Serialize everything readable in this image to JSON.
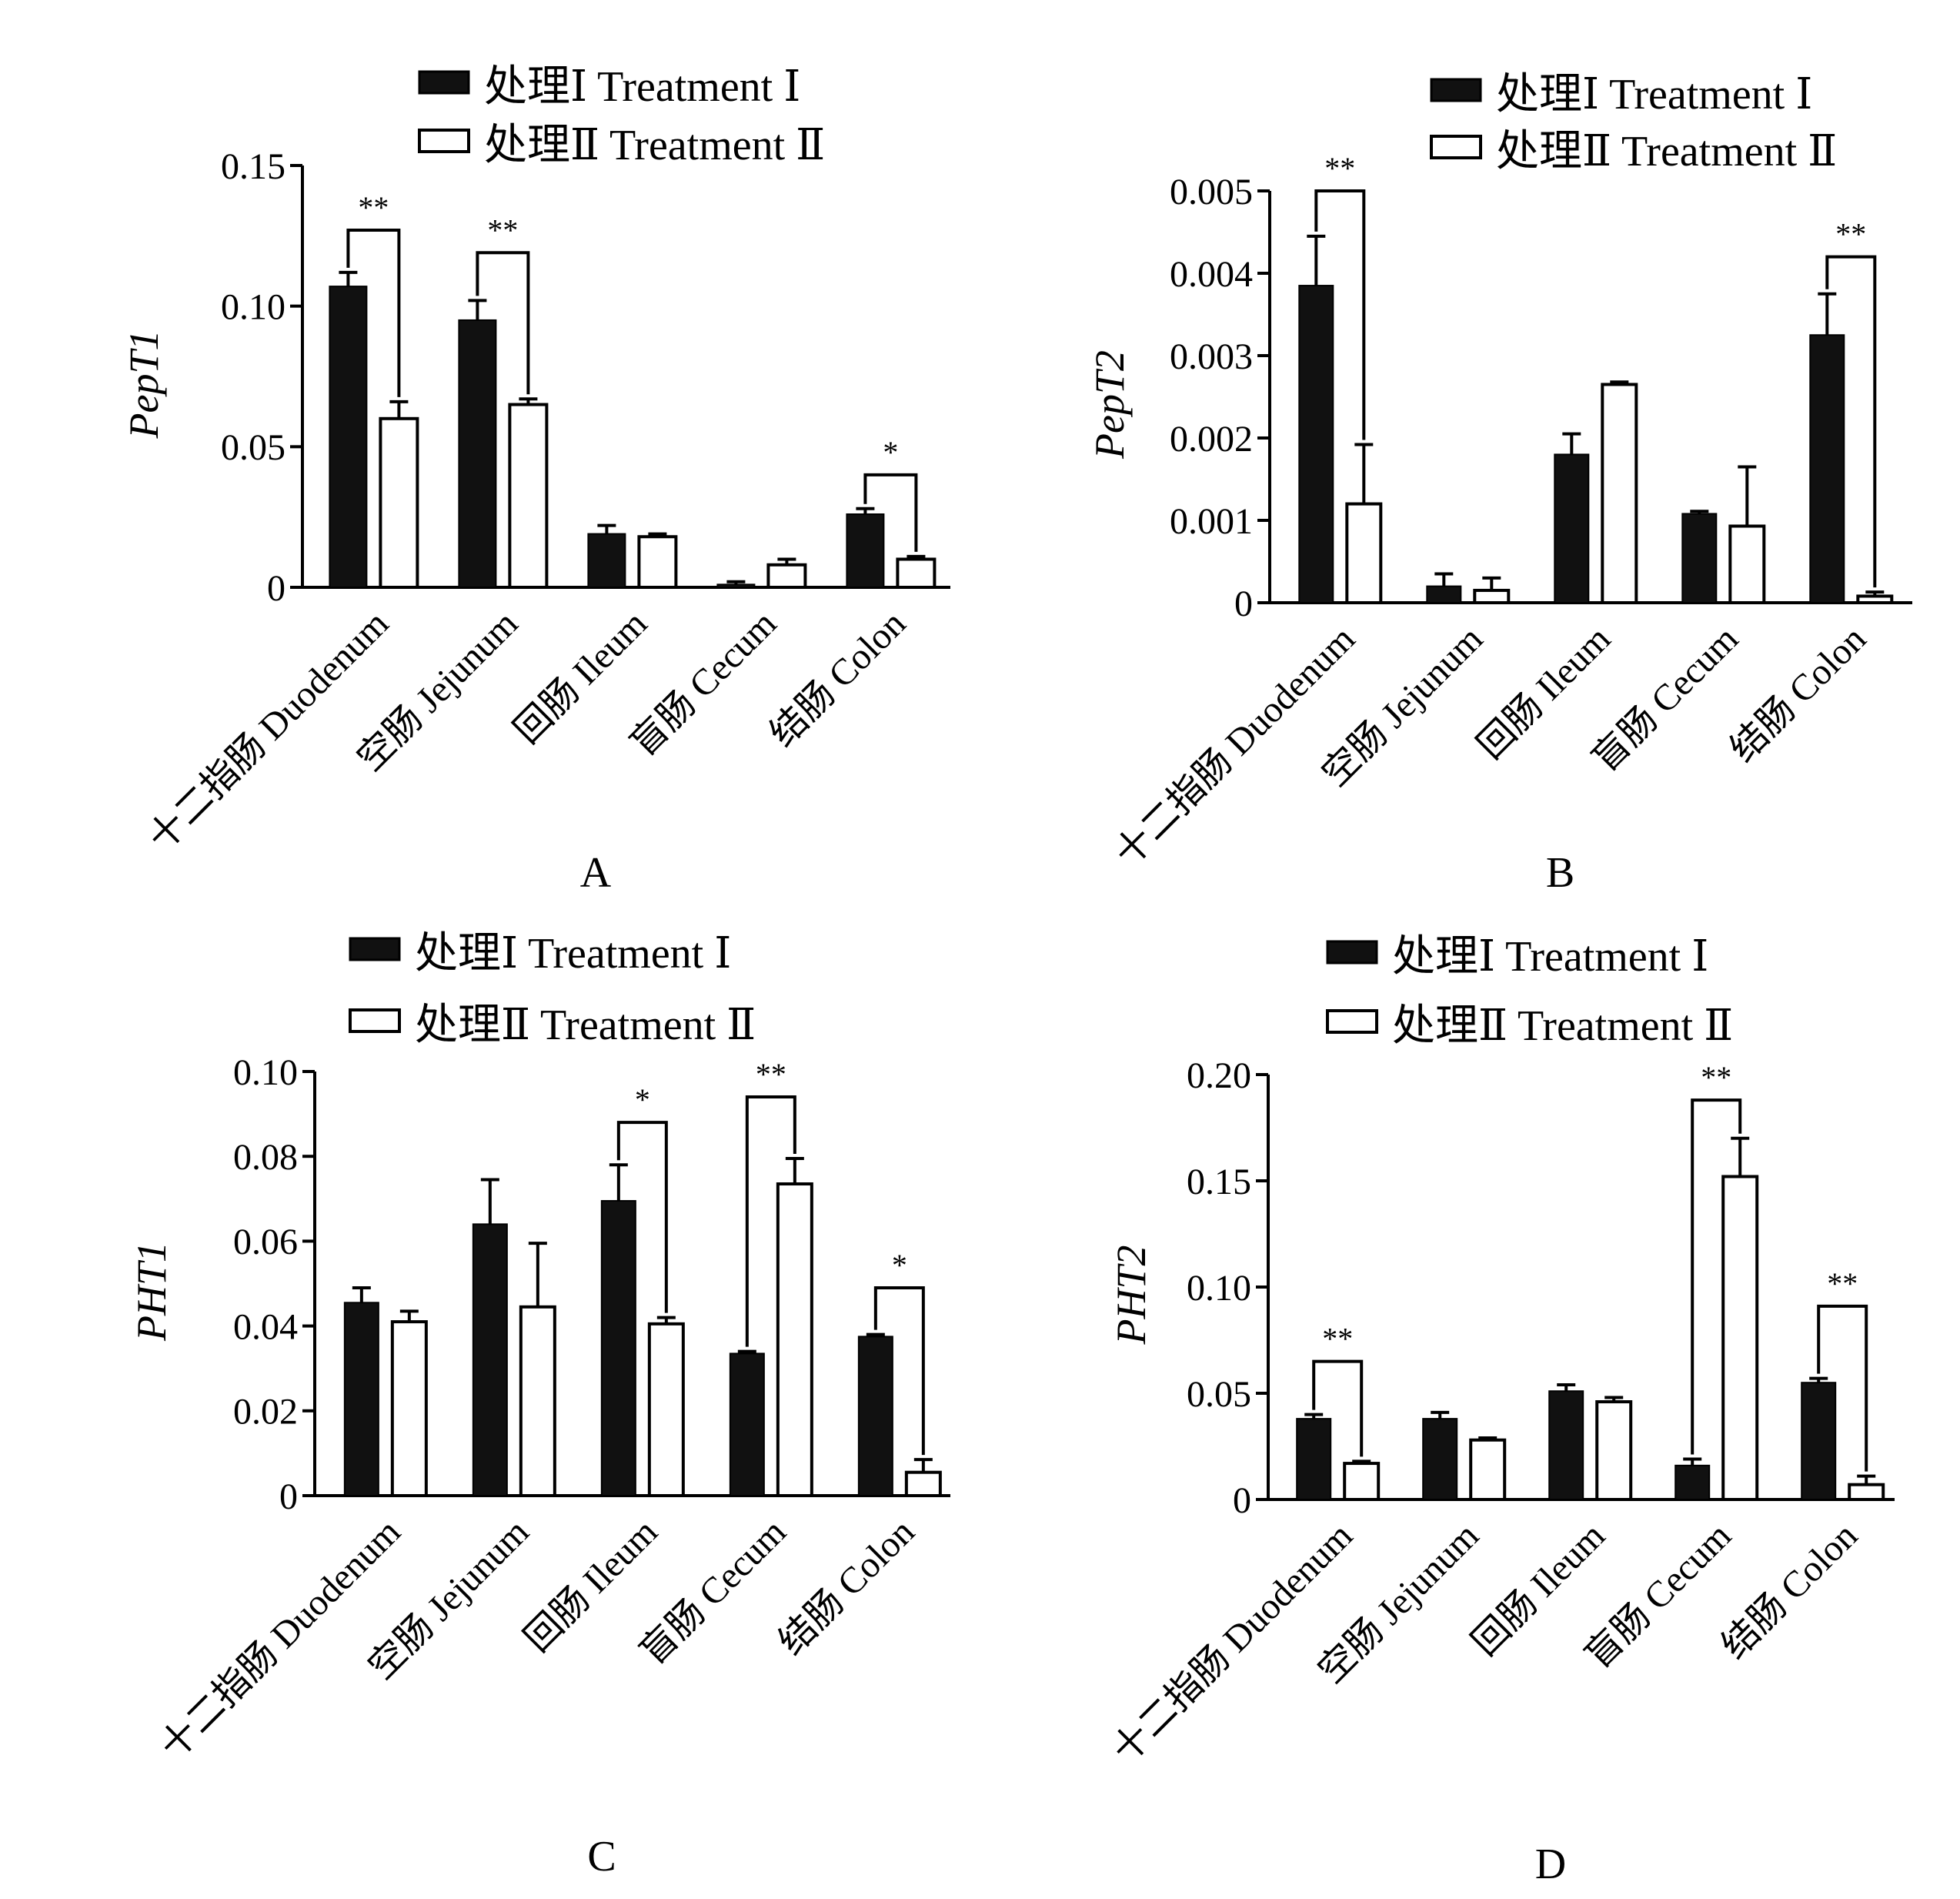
{
  "legend": {
    "treatment1": "处理Ⅰ Treatment Ⅰ",
    "treatment2": "处理Ⅱ Treatment Ⅱ"
  },
  "colors": {
    "treatment1": "#111111",
    "treatment2": "#ffffff",
    "axis": "#000000"
  },
  "chart_data": [
    {
      "type": "bar",
      "panel_label": "A",
      "ylabel": "PepT1",
      "categories": [
        "十二指肠 Duodenum",
        "空肠 Jejunum",
        "回肠 Ileum",
        "盲肠 Cecum",
        "结肠 Colon"
      ],
      "ylim": [
        0,
        0.15
      ],
      "yticks": [
        0,
        0.05,
        0.1,
        0.15
      ],
      "ytick_labels": [
        "0",
        "0.05",
        "0.10",
        "0.15"
      ],
      "series": [
        {
          "name": "处理Ⅰ Treatment Ⅰ",
          "values": [
            0.107,
            0.095,
            0.019,
            0.001,
            0.026
          ],
          "errors": [
            0.005,
            0.007,
            0.003,
            0.001,
            0.002
          ]
        },
        {
          "name": "处理Ⅱ Treatment Ⅱ",
          "values": [
            0.06,
            0.065,
            0.018,
            0.008,
            0.01
          ],
          "errors": [
            0.006,
            0.002,
            0.001,
            0.002,
            0.001
          ]
        }
      ],
      "significance": [
        {
          "category": 0,
          "label": "**",
          "level": 0.127
        },
        {
          "category": 1,
          "label": "**",
          "level": 0.119
        },
        {
          "category": 4,
          "label": "*",
          "level": 0.04
        }
      ],
      "legend_position": "top"
    },
    {
      "type": "bar",
      "panel_label": "B",
      "ylabel": "PepT2",
      "categories": [
        "十二指肠 Duodenum",
        "空肠 Jejunum",
        "回肠 Ileum",
        "盲肠 Cecum",
        "结肠 Colon"
      ],
      "ylim": [
        0,
        0.005
      ],
      "yticks": [
        0,
        0.001,
        0.002,
        0.003,
        0.004,
        0.005
      ],
      "ytick_labels": [
        "0",
        "0.001",
        "0.002",
        "0.003",
        "0.004",
        "0.005"
      ],
      "series": [
        {
          "name": "处理Ⅰ Treatment Ⅰ",
          "values": [
            0.00385,
            0.0002,
            0.0018,
            0.00108,
            0.00325
          ],
          "errors": [
            0.0006,
            0.00015,
            0.00025,
            3e-05,
            0.0005
          ]
        },
        {
          "name": "处理Ⅱ Treatment Ⅱ",
          "values": [
            0.0012,
            0.00015,
            0.00265,
            0.00093,
            8e-05
          ],
          "errors": [
            0.00072,
            0.00015,
            3e-05,
            0.00072,
            5e-05
          ]
        }
      ],
      "significance": [
        {
          "category": 0,
          "label": "**",
          "level": 0.005
        },
        {
          "category": 4,
          "label": "**",
          "level": 0.0042
        }
      ],
      "legend_position": "top"
    },
    {
      "type": "bar",
      "panel_label": "C",
      "ylabel": "PHT1",
      "categories": [
        "十二指肠 Duodenum",
        "空肠 Jejunum",
        "回肠 Ileum",
        "盲肠 Cecum",
        "结肠 Colon"
      ],
      "ylim": [
        0,
        0.1
      ],
      "yticks": [
        0,
        0.02,
        0.04,
        0.06,
        0.08,
        0.1
      ],
      "ytick_labels": [
        "0",
        "0.02",
        "0.04",
        "0.06",
        "0.08",
        "0.10"
      ],
      "series": [
        {
          "name": "处理Ⅰ Treatment Ⅰ",
          "values": [
            0.0455,
            0.064,
            0.0695,
            0.0335,
            0.0375
          ],
          "errors": [
            0.0035,
            0.0105,
            0.0085,
            0.0005,
            0.0005
          ]
        },
        {
          "name": "处理Ⅱ Treatment Ⅱ",
          "values": [
            0.041,
            0.0445,
            0.0405,
            0.0735,
            0.0055
          ],
          "errors": [
            0.0025,
            0.015,
            0.0015,
            0.006,
            0.003
          ]
        }
      ],
      "significance": [
        {
          "category": 2,
          "label": "*",
          "level": 0.088
        },
        {
          "category": 3,
          "label": "**",
          "level": 0.094
        },
        {
          "category": 4,
          "label": "*",
          "level": 0.049
        }
      ],
      "legend_position": "top"
    },
    {
      "type": "bar",
      "panel_label": "D",
      "ylabel": "PHT2",
      "categories": [
        "十二指肠 Duodenum",
        "空肠 Jejunum",
        "回肠 Ileum",
        "盲肠 Cecum",
        "结肠 Colon"
      ],
      "ylim": [
        0,
        0.2
      ],
      "yticks": [
        0,
        0.05,
        0.1,
        0.15,
        0.2
      ],
      "ytick_labels": [
        "0",
        "0.05",
        "0.10",
        "0.15",
        "0.20"
      ],
      "series": [
        {
          "name": "处理Ⅰ Treatment Ⅰ",
          "values": [
            0.038,
            0.038,
            0.051,
            0.016,
            0.055
          ],
          "errors": [
            0.002,
            0.003,
            0.003,
            0.003,
            0.002
          ]
        },
        {
          "name": "处理Ⅱ Treatment Ⅱ",
          "values": [
            0.017,
            0.028,
            0.046,
            0.152,
            0.007
          ],
          "errors": [
            0.001,
            0.001,
            0.002,
            0.018,
            0.004
          ]
        }
      ],
      "significance": [
        {
          "category": 0,
          "label": "**",
          "level": 0.065
        },
        {
          "category": 3,
          "label": "**",
          "level": 0.188
        },
        {
          "category": 4,
          "label": "**",
          "level": 0.091
        }
      ],
      "legend_position": "top"
    }
  ]
}
